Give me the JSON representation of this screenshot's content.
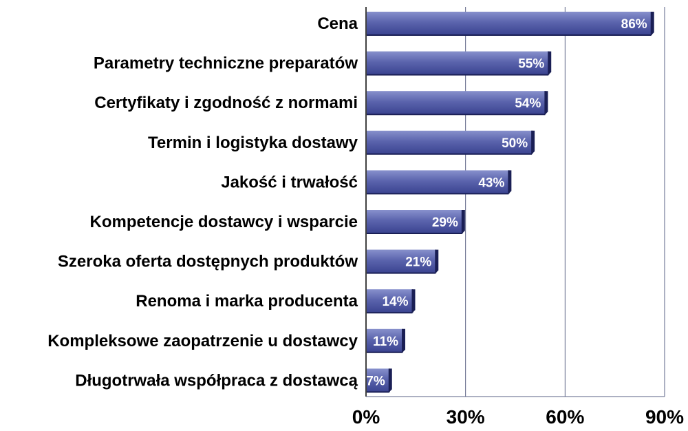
{
  "chart_data": {
    "type": "bar",
    "orientation": "horizontal",
    "title": "",
    "xlabel": "",
    "ylabel": "",
    "categories": [
      "Cena",
      "Parametry techniczne preparatów",
      "Certyfikaty i zgodność z normami",
      "Termin i logistyka dostawy",
      "Jakość i trwałość",
      "Kompetencje dostawcy i wsparcie",
      "Szeroka oferta dostępnych produktów",
      "Renoma i marka producenta",
      "Kompleksowe zaopatrzenie u dostawcy",
      "Długotrwała współpraca z dostawcą"
    ],
    "values": [
      86,
      55,
      54,
      50,
      43,
      29,
      21,
      14,
      11,
      7
    ],
    "data_labels": [
      "86%",
      "55%",
      "54%",
      "50%",
      "43%",
      "29%",
      "21%",
      "14%",
      "11%",
      "7%"
    ],
    "xlim": [
      0,
      90
    ],
    "x_ticks": [
      0,
      30,
      60,
      90
    ],
    "x_tick_labels": [
      "0%",
      "30%",
      "60%",
      "90%"
    ],
    "grid": "vertical",
    "legend": "none",
    "colors": {
      "bar_top": "#8790cc",
      "bar_mid": "#5b64ad",
      "bar_bottom": "#3a4390",
      "bar_shadow": "#1a1f55",
      "gridline": "#5a6284",
      "axis": "#000000"
    }
  }
}
